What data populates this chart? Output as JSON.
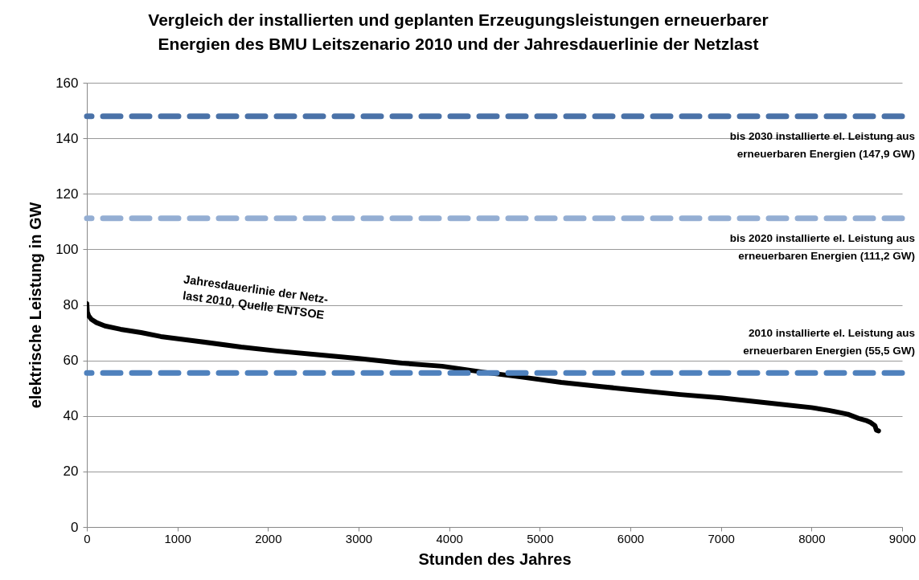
{
  "chart_data": {
    "type": "line",
    "title": "Vergleich der installierten und geplanten Erzeugungsleistungen  erneuerbarer\nEnergien des BMU Leitszenario 2010 und der Jahresdauerlinie der Netzlast",
    "xlabel": "Stunden des Jahres",
    "ylabel": "elektrische Leistung in GW",
    "x": [
      0,
      5,
      20,
      50,
      107,
      200,
      373,
      600,
      817,
      1200,
      1704,
      2100,
      2592,
      3000,
      3479,
      3923,
      4367,
      4800,
      5237,
      5700,
      6000,
      6550,
      7000,
      7535,
      8000,
      8192,
      8400,
      8521,
      8600,
      8654,
      8700,
      8716,
      8740
    ],
    "series": [
      {
        "color": "#000000",
        "values": [
          80.4,
          77.5,
          76.1,
          74.8,
          73.6,
          72.4,
          71.2,
          70.0,
          68.6,
          67.0,
          64.8,
          63.4,
          61.9,
          60.7,
          59.0,
          57.9,
          55.8,
          54.0,
          52.1,
          50.5,
          49.5,
          47.7,
          46.5,
          44.6,
          43.0,
          42.0,
          40.6,
          39.1,
          38.4,
          37.6,
          36.5,
          34.9,
          34.6
        ]
      }
    ],
    "xlim": [
      0,
      9000
    ],
    "xticks": [
      0,
      1000,
      2000,
      3000,
      4000,
      5000,
      6000,
      7000,
      8000,
      9000
    ],
    "ylim": [
      0,
      160
    ],
    "yticks": [
      0,
      20,
      40,
      60,
      80,
      100,
      120,
      140,
      160
    ],
    "grid": "y",
    "ref_lines": [
      {
        "axis": "y",
        "value": 147.9,
        "label": "bis 2030 installierte  el. Leistung aus\nerneuerbaren Energien  (147,9 GW)",
        "color": "#4a72a8",
        "line_style": "dashed"
      },
      {
        "axis": "y",
        "value": 111.2,
        "label": "bis 2020 installierte el. Leistung aus\nerneuerbaren Energien (111,2 GW)",
        "color": "#94aed3",
        "line_style": "dashed"
      },
      {
        "axis": "y",
        "value": 55.5,
        "label": "2010 installierte el. Leistung aus\nerneuerbaren Energien (55,5 GW)",
        "color": "#4f81bd",
        "line_style": "dashed"
      }
    ],
    "annotations": [
      "Jahresdauerlinie der Netz-\nlast 2010, Quelle ENTSOE"
    ]
  }
}
